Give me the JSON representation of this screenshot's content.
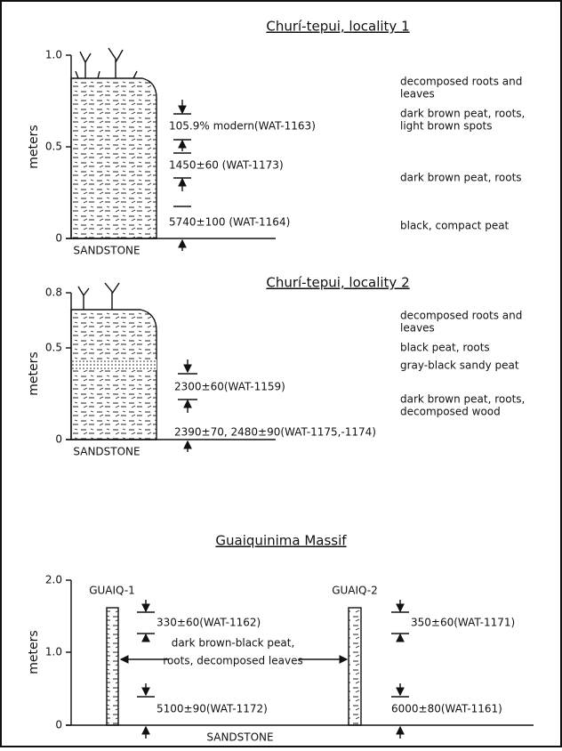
{
  "panels": [
    {
      "title": "Churí-tepui, locality 1",
      "axis_label": "meters",
      "ticks": [
        "1.0",
        "0.5",
        "0"
      ],
      "base": "SANDSTONE",
      "dates": [
        "105.9% modern(WAT-1163)",
        "1450±60 (WAT-1173)",
        "5740±100 (WAT-1164)"
      ],
      "layers": [
        [
          "decomposed roots and",
          "leaves"
        ],
        [
          "dark brown peat, roots,",
          "light brown spots"
        ],
        [
          "dark brown peat, roots"
        ],
        [
          "black, compact peat"
        ]
      ]
    },
    {
      "title": "Churí-tepui, locality 2",
      "axis_label": "meters",
      "ticks": [
        "0.8",
        "0.5",
        "0"
      ],
      "base": "SANDSTONE",
      "dates": [
        "2300±60(WAT-1159)",
        "2390±70, 2480±90(WAT-1175,-1174)"
      ],
      "layers": [
        [
          "decomposed roots and",
          "leaves"
        ],
        [
          "black peat, roots"
        ],
        [
          "gray-black sandy peat"
        ],
        [
          "dark brown peat, roots,",
          "decomposed wood"
        ]
      ]
    },
    {
      "title": "Guaiquinima Massif",
      "axis_label": "meters",
      "ticks": [
        "2.0",
        "1.0",
        "0"
      ],
      "base": "SANDSTONE",
      "cores": [
        "GUAIQ-1",
        "GUAIQ-2"
      ],
      "dates": [
        "330±60(WAT-1162)",
        "5100±90(WAT-1172)",
        "350±60(WAT-1171)",
        "6000±80(WAT-1161)"
      ],
      "layer_note": [
        "dark brown-black peat,",
        "roots, decomposed leaves"
      ]
    }
  ]
}
